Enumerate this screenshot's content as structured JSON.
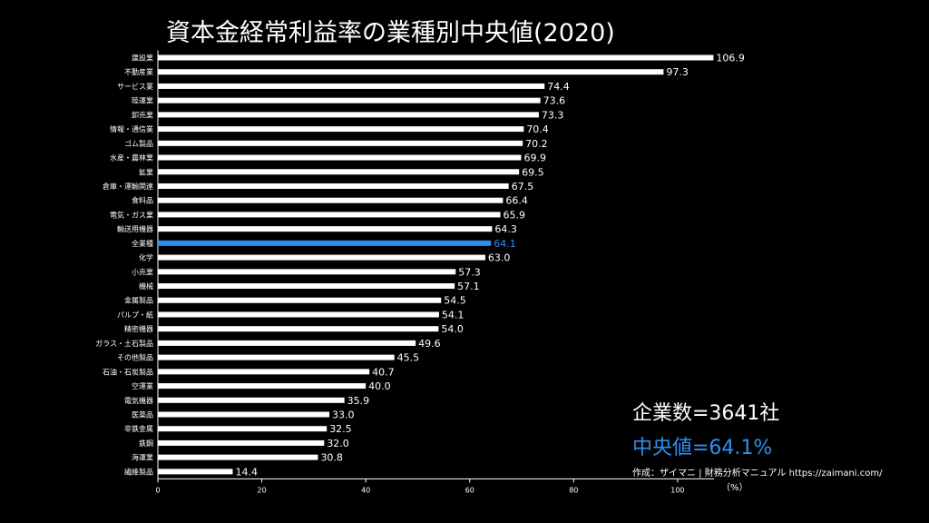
{
  "title": "資本金経常利益率の業種別中央値(2020)",
  "stats": {
    "count_text": "企業数=3641社",
    "median_text": "中央値=64.1%"
  },
  "credit": "作成：ザイマニ | 財務分析マニュアル https://zaimani.com/",
  "colors": {
    "bar": "#ffffff",
    "highlight": "#2e8ff0",
    "background": "#000000",
    "text": "#ffffff"
  },
  "chart_data": {
    "type": "bar",
    "orientation": "horizontal",
    "categories": [
      "建設業",
      "不動産業",
      "サービス業",
      "陸運業",
      "卸売業",
      "情報・通信業",
      "ゴム製品",
      "水産・農林業",
      "鉱業",
      "倉庫・運輸関連",
      "食料品",
      "電気・ガス業",
      "輸送用機器",
      "全業種",
      "化学",
      "小売業",
      "機械",
      "金属製品",
      "パルプ・紙",
      "精密機器",
      "ガラス・土石製品",
      "その他製品",
      "石油・石炭製品",
      "空運業",
      "電気機器",
      "医薬品",
      "非鉄金属",
      "鉄鋼",
      "海運業",
      "繊維製品"
    ],
    "values": [
      106.9,
      97.3,
      74.4,
      73.6,
      73.3,
      70.4,
      70.2,
      69.9,
      69.5,
      67.5,
      66.4,
      65.9,
      64.3,
      64.1,
      63.0,
      57.3,
      57.1,
      54.5,
      54.1,
      54.0,
      49.6,
      45.5,
      40.7,
      40.0,
      35.9,
      33.0,
      32.5,
      32.0,
      30.8,
      14.4
    ],
    "value_labels": [
      "106.9",
      "97.3",
      "74.4",
      "73.6",
      "73.3",
      "70.4",
      "70.2",
      "69.9",
      "69.5",
      "67.5",
      "66.4",
      "65.9",
      "64.3",
      "64.1",
      "63.0",
      "57.3",
      "57.1",
      "54.5",
      "54.1",
      "54.0",
      "49.6",
      "45.5",
      "40.7",
      "40.0",
      "35.9",
      "33.0",
      "32.5",
      "32.0",
      "30.8",
      "14.4"
    ],
    "highlight_category": "全業種",
    "xlim": [
      0,
      107
    ],
    "xticks": [
      0,
      20,
      40,
      60,
      80,
      100
    ],
    "xlabel": "（%）",
    "grid": false
  }
}
